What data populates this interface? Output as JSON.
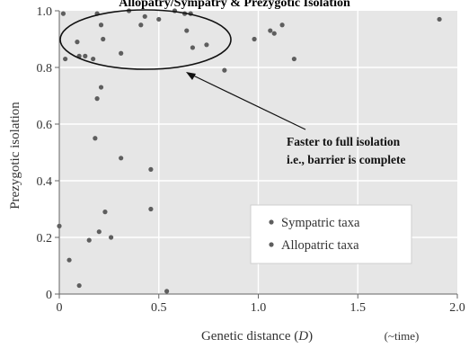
{
  "chart_data": {
    "type": "scatter",
    "title": "Allopatry/Sympatry & Prezygotic Isolation",
    "xlabel": "Genetic distance (D)",
    "xlabel_main": "Genetic distance (",
    "xlabel_var": "D",
    "xlabel_close": ")",
    "x_note": "(~time)",
    "ylabel": "Prezygotic isolation",
    "xlim": [
      0,
      2.0
    ],
    "ylim": [
      0,
      1.0
    ],
    "x_ticks": [
      "0",
      "0.5",
      "1.0",
      "1.5",
      "2.0"
    ],
    "y_ticks": [
      "0",
      "0.2",
      "0.4",
      "0.6",
      "0.8",
      "1.0"
    ],
    "grid": true,
    "legend_position": "bottom-right",
    "colors": {
      "background": "#e6e6e6",
      "point": "#5e5e5e",
      "grid": "#ffffff"
    },
    "series": [
      {
        "name": "Sympatric taxa",
        "points": [
          [
            0.02,
            0.99
          ],
          [
            0.09,
            0.89
          ],
          [
            0.1,
            0.84
          ],
          [
            0.13,
            0.84
          ],
          [
            0.19,
            0.99
          ],
          [
            0.21,
            0.95
          ],
          [
            0.22,
            0.9
          ],
          [
            0.31,
            0.85
          ],
          [
            0.35,
            1.0
          ],
          [
            0.41,
            0.95
          ],
          [
            0.43,
            0.98
          ],
          [
            0.5,
            0.97
          ],
          [
            0.58,
            1.0
          ],
          [
            0.63,
            0.99
          ],
          [
            0.64,
            0.93
          ],
          [
            0.66,
            0.99
          ],
          [
            0.67,
            0.87
          ],
          [
            0.74,
            0.88
          ]
        ]
      },
      {
        "name": "Allopatric taxa",
        "points": [
          [
            0.0,
            0.24
          ],
          [
            0.03,
            0.83
          ],
          [
            0.05,
            0.12
          ],
          [
            0.1,
            0.03
          ],
          [
            0.15,
            0.19
          ],
          [
            0.17,
            0.83
          ],
          [
            0.18,
            0.55
          ],
          [
            0.19,
            0.69
          ],
          [
            0.2,
            0.22
          ],
          [
            0.21,
            0.73
          ],
          [
            0.23,
            0.29
          ],
          [
            0.26,
            0.2
          ],
          [
            0.31,
            0.48
          ],
          [
            0.46,
            0.44
          ],
          [
            0.46,
            0.3
          ],
          [
            0.54,
            0.01
          ],
          [
            0.83,
            0.79
          ],
          [
            0.98,
            0.9
          ],
          [
            1.06,
            0.93
          ],
          [
            1.08,
            0.92
          ],
          [
            1.12,
            0.95
          ],
          [
            1.18,
            0.83
          ],
          [
            1.91,
            0.97
          ]
        ]
      }
    ],
    "annotation": {
      "lines": [
        "Faster to full isolation",
        "i.e., barrier is complete"
      ]
    }
  }
}
